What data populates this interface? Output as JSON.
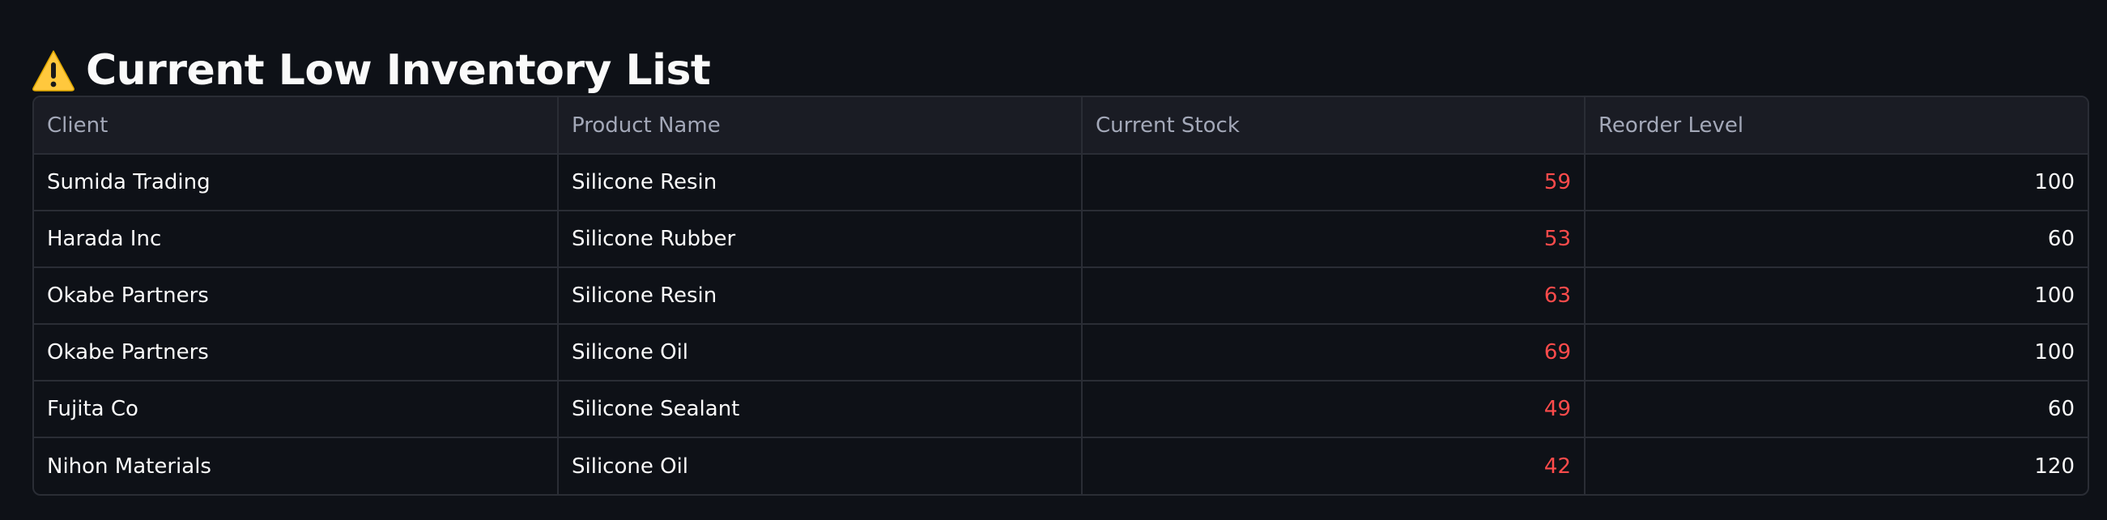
{
  "page": {
    "title": "Current Low Inventory List",
    "title_icon": "warning-icon"
  },
  "table": {
    "columns": [
      "Client",
      "Product Name",
      "Current Stock",
      "Reorder Level"
    ],
    "rows": [
      {
        "client": "Sumida Trading",
        "product": "Silicone Resin",
        "stock": "59",
        "reorder": "100"
      },
      {
        "client": "Harada Inc",
        "product": "Silicone Rubber",
        "stock": "53",
        "reorder": "60"
      },
      {
        "client": "Okabe Partners",
        "product": "Silicone Resin",
        "stock": "63",
        "reorder": "100"
      },
      {
        "client": "Okabe Partners",
        "product": "Silicone Oil",
        "stock": "69",
        "reorder": "100"
      },
      {
        "client": "Fujita Co",
        "product": "Silicone Sealant",
        "stock": "49",
        "reorder": "60"
      },
      {
        "client": "Nihon Materials",
        "product": "Silicone Oil",
        "stock": "42",
        "reorder": "120"
      }
    ]
  },
  "colors": {
    "background": "#0e1117",
    "header_bg": "#1a1c24",
    "text": "#fafafa",
    "header_text": "#a3a8b8",
    "low_stock": "#ff4b4b",
    "border": "#2a2d35",
    "warning_fill": "#ffc83d"
  }
}
